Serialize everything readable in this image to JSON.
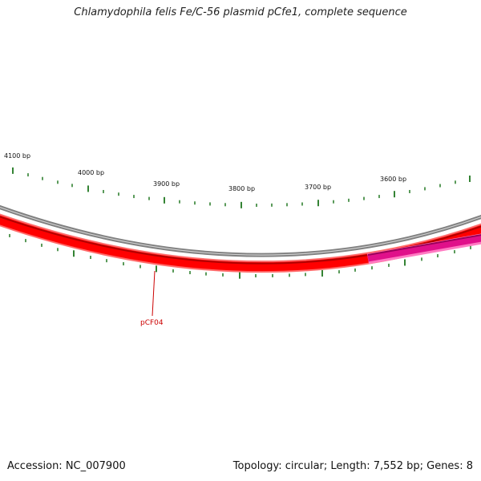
{
  "title": "Chlamydophila felis Fe/C-56 plasmid pCfe1, complete sequence",
  "footer": {
    "accession": "Accession: NC_007900",
    "summary": "Topology: circular; Length: 7,552 bp; Genes: 8"
  },
  "scale_labels": [
    "4100 bp",
    "4000 bp",
    "3900 bp",
    "3800 bp",
    "3700 bp",
    "3600 bp"
  ],
  "genes": [
    {
      "label": "pCF04",
      "color": "#ff0000",
      "strand": "minus"
    },
    {
      "label": "",
      "color": "#ff1493",
      "strand": "minus"
    }
  ],
  "colors": {
    "backbone": "#808080",
    "forward_ticks": "#006400",
    "reverse_ticks": "#006400",
    "gene_label": "#cc0000"
  }
}
